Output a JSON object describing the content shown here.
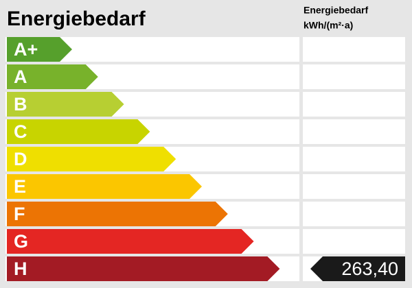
{
  "header": {
    "title": "Energiebedarf",
    "column_title": "Energiebedarf",
    "column_unit": "kWh/(m²·a)"
  },
  "rows": [
    {
      "label": "A+",
      "color": "#56a02c"
    },
    {
      "label": "A",
      "color": "#78b22b"
    },
    {
      "label": "B",
      "color": "#b7cf32"
    },
    {
      "label": "C",
      "color": "#c8d400"
    },
    {
      "label": "D",
      "color": "#efdf00"
    },
    {
      "label": "E",
      "color": "#fbc600"
    },
    {
      "label": "F",
      "color": "#ec7404"
    },
    {
      "label": "G",
      "color": "#e42623"
    },
    {
      "label": "H",
      "color": "#a31b24",
      "value": "263,40"
    }
  ]
}
